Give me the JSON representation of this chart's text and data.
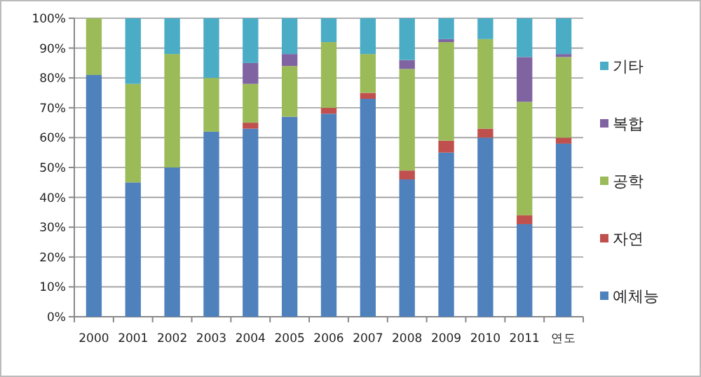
{
  "chart_data": {
    "type": "bar",
    "stacked": true,
    "categories": [
      "2000",
      "2001",
      "2002",
      "2003",
      "2004",
      "2005",
      "2006",
      "2007",
      "2008",
      "2009",
      "2010",
      "2011",
      "연도"
    ],
    "series": [
      {
        "name": "예체능",
        "color": "#4f81bd",
        "values": [
          81,
          45,
          50,
          62,
          63,
          67,
          68,
          73,
          46,
          55,
          60,
          31,
          58
        ]
      },
      {
        "name": "자연",
        "color": "#c0504d",
        "values": [
          0,
          0,
          0,
          0,
          2,
          0,
          2,
          2,
          3,
          4,
          3,
          3,
          2
        ]
      },
      {
        "name": "공학",
        "color": "#9bbb59",
        "values": [
          19,
          33,
          38,
          18,
          13,
          17,
          22,
          13,
          34,
          33,
          30,
          38,
          27
        ]
      },
      {
        "name": "복합",
        "color": "#8064a2",
        "values": [
          0,
          0,
          0,
          0,
          7,
          4,
          0,
          0,
          3,
          1,
          0,
          15,
          1
        ]
      },
      {
        "name": "기타",
        "color": "#4bacc6",
        "values": [
          0,
          22,
          12,
          20,
          15,
          12,
          8,
          12,
          14,
          7,
          7,
          13,
          12
        ]
      }
    ],
    "ylim": [
      0,
      100
    ],
    "yticks": [
      {
        "value": 0,
        "label": "0%"
      },
      {
        "value": 10,
        "label": "10%"
      },
      {
        "value": 20,
        "label": "20%"
      },
      {
        "value": 30,
        "label": "30%"
      },
      {
        "value": 40,
        "label": "40%"
      },
      {
        "value": 50,
        "label": "50%"
      },
      {
        "value": 60,
        "label": "60%"
      },
      {
        "value": 70,
        "label": "70%"
      },
      {
        "value": 80,
        "label": "80%"
      },
      {
        "value": 90,
        "label": "90%"
      },
      {
        "value": 100,
        "label": "100%"
      }
    ],
    "grid": "y",
    "legend": "right"
  }
}
